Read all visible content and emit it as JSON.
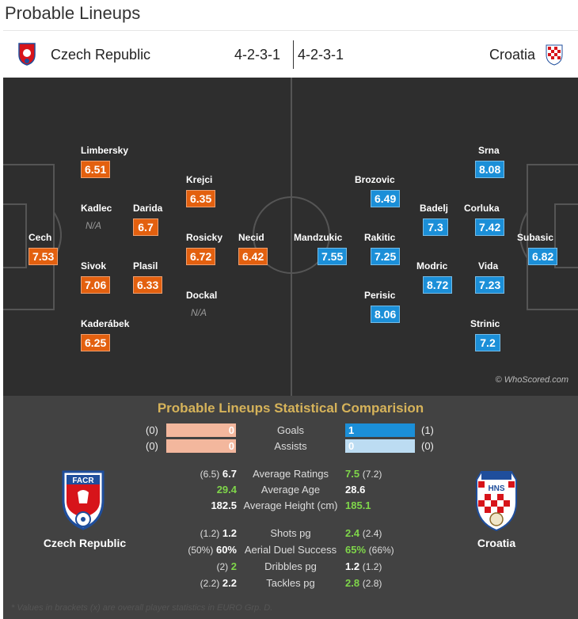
{
  "title": "Probable Lineups",
  "home": {
    "name": "Czech Republic",
    "formation": "4-2-3-1",
    "rating_color": "#e3600f"
  },
  "away": {
    "name": "Croatia",
    "formation": "4-2-3-1",
    "rating_color": "#1b8fd8"
  },
  "home_players": [
    {
      "name": "Cech",
      "rating": "7.53"
    },
    {
      "name": "Limbersky",
      "rating": "6.51"
    },
    {
      "name": "Kadlec",
      "rating": "N/A"
    },
    {
      "name": "Sivok",
      "rating": "7.06"
    },
    {
      "name": "Kaderábek",
      "rating": "6.25"
    },
    {
      "name": "Darida",
      "rating": "6.7"
    },
    {
      "name": "Plasil",
      "rating": "6.33"
    },
    {
      "name": "Krejci",
      "rating": "6.35"
    },
    {
      "name": "Rosicky",
      "rating": "6.72"
    },
    {
      "name": "Dockal",
      "rating": "N/A"
    },
    {
      "name": "Necid",
      "rating": "6.42"
    }
  ],
  "away_players": [
    {
      "name": "Mandzukic",
      "rating": "7.55"
    },
    {
      "name": "Brozovic",
      "rating": "6.49"
    },
    {
      "name": "Rakitic",
      "rating": "7.25"
    },
    {
      "name": "Perisic",
      "rating": "8.06"
    },
    {
      "name": "Badelj",
      "rating": "7.3"
    },
    {
      "name": "Modric",
      "rating": "8.72"
    },
    {
      "name": "Srna",
      "rating": "8.08"
    },
    {
      "name": "Corluka",
      "rating": "7.42"
    },
    {
      "name": "Vida",
      "rating": "7.23"
    },
    {
      "name": "Strinic",
      "rating": "7.2"
    },
    {
      "name": "Subasic",
      "rating": "6.82"
    }
  ],
  "watermark": "© WhoScored.com",
  "comparison": {
    "heading": "Probable Lineups Statistical Comparision",
    "goals": {
      "label": "Goals",
      "home_bracket": "(0)",
      "home": "0",
      "away": "1",
      "away_bracket": "(1)"
    },
    "assists": {
      "label": "Assists",
      "home_bracket": "(0)",
      "home": "0",
      "away": "0",
      "away_bracket": "(0)"
    },
    "rows": [
      {
        "label": "Average Ratings",
        "home_bracket": "(6.5)",
        "home": "6.7",
        "away": "7.5",
        "away_bracket": "(7.2)",
        "leader": "away"
      },
      {
        "label": "Average Age",
        "home_bracket": "",
        "home": "29.4",
        "away": "28.6",
        "away_bracket": "",
        "leader": "home"
      },
      {
        "label": "Average Height (cm)",
        "home_bracket": "",
        "home": "182.5",
        "away": "185.1",
        "away_bracket": "",
        "leader": "away"
      },
      {
        "label": "Shots pg",
        "home_bracket": "(1.2)",
        "home": "1.2",
        "away": "2.4",
        "away_bracket": "(2.4)",
        "leader": "away"
      },
      {
        "label": "Aerial Duel Success",
        "home_bracket": "(50%)",
        "home": "60%",
        "away": "65%",
        "away_bracket": "(66%)",
        "leader": "away"
      },
      {
        "label": "Dribbles pg",
        "home_bracket": "(2)",
        "home": "2",
        "away": "1.2",
        "away_bracket": "(1.2)",
        "leader": "home"
      },
      {
        "label": "Tackles pg",
        "home_bracket": "(2.2)",
        "home": "2.2",
        "away": "2.8",
        "away_bracket": "(2.8)",
        "leader": "away"
      }
    ]
  },
  "footnote": "* Values in brackets (x) are overall player statistics in EURO Grp. D."
}
